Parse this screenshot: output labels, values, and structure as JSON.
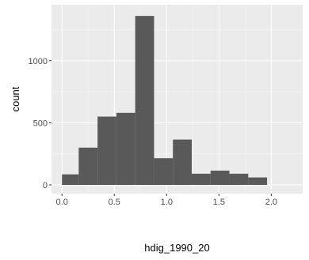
{
  "chart_data": {
    "type": "histogram",
    "xlabel": "hdig_1990_20",
    "ylabel": "count",
    "xlim": [
      -0.1,
      2.3
    ],
    "ylim": [
      -70,
      1450
    ],
    "x_ticks": [
      0.0,
      0.5,
      1.0,
      1.5,
      2.0
    ],
    "x_tick_labels": [
      "0.0",
      "0.5",
      "1.0",
      "1.5",
      "2.0"
    ],
    "y_ticks": [
      0,
      500,
      1000
    ],
    "y_tick_labels": [
      "0",
      "500",
      "1000"
    ],
    "grid": true,
    "bins": [
      {
        "x0": -0.0,
        "x1": 0.16,
        "count": 85
      },
      {
        "x0": 0.16,
        "x1": 0.34,
        "count": 300
      },
      {
        "x0": 0.34,
        "x1": 0.52,
        "count": 550
      },
      {
        "x0": 0.52,
        "x1": 0.7,
        "count": 580
      },
      {
        "x0": 0.7,
        "x1": 0.88,
        "count": 1360
      },
      {
        "x0": 0.88,
        "x1": 1.06,
        "count": 215
      },
      {
        "x0": 1.06,
        "x1": 1.24,
        "count": 365
      },
      {
        "x0": 1.24,
        "x1": 1.42,
        "count": 90
      },
      {
        "x0": 1.42,
        "x1": 1.6,
        "count": 115
      },
      {
        "x0": 1.6,
        "x1": 1.78,
        "count": 90
      },
      {
        "x0": 1.78,
        "x1": 1.96,
        "count": 60
      }
    ],
    "colors": {
      "panel": "#ebebeb",
      "grid_major": "#ffffff",
      "bar": "#595959"
    }
  }
}
